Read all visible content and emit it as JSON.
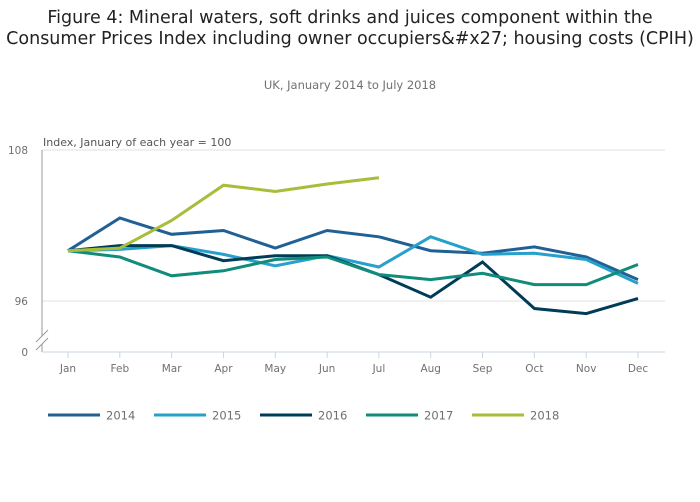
{
  "chart_data": {
    "type": "line",
    "title": "Figure 4: Mineral waters, soft drinks and juices component within the Consumer Prices Index including owner occupiers&#x27; housing costs (CPIH)",
    "subtitle": "UK, January 2014 to July 2018",
    "ylabel": "Index, January of each year = 100",
    "xlabel": "",
    "categories": [
      "Jan",
      "Feb",
      "Mar",
      "Apr",
      "May",
      "Jun",
      "Jul",
      "Aug",
      "Sep",
      "Oct",
      "Nov",
      "Dec"
    ],
    "y_ticks": [
      {
        "value": 108,
        "label": "108"
      },
      {
        "value": 96,
        "label": "96"
      },
      {
        "value": 0,
        "label": "0"
      }
    ],
    "ylim": [
      94,
      108
    ],
    "axis_break": true,
    "grid": true,
    "legend_position": "bottom",
    "series": [
      {
        "name": "2014",
        "color": "#206095",
        "values": [
          100,
          102.6,
          101.3,
          101.6,
          100.2,
          101.6,
          101.1,
          100.0,
          99.8,
          100.3,
          99.5,
          97.7
        ]
      },
      {
        "name": "2015",
        "color": "#27a0cc",
        "values": [
          100,
          100.1,
          100.4,
          99.7,
          98.8,
          99.6,
          98.7,
          101.1,
          99.7,
          99.8,
          99.3,
          97.4
        ]
      },
      {
        "name": "2016",
        "color": "#003c57",
        "values": [
          100,
          100.4,
          100.4,
          99.2,
          99.6,
          99.6,
          98.1,
          96.3,
          99.1,
          95.4,
          95.0,
          96.2
        ]
      },
      {
        "name": "2017",
        "color": "#118c7b",
        "values": [
          100,
          99.5,
          98.0,
          98.4,
          99.3,
          99.5,
          98.1,
          97.7,
          98.2,
          97.3,
          97.3,
          98.9
        ]
      },
      {
        "name": "2018",
        "color": "#a8bd3a",
        "values": [
          100,
          100.2,
          102.4,
          105.2,
          104.7,
          105.3,
          105.8
        ]
      }
    ]
  }
}
